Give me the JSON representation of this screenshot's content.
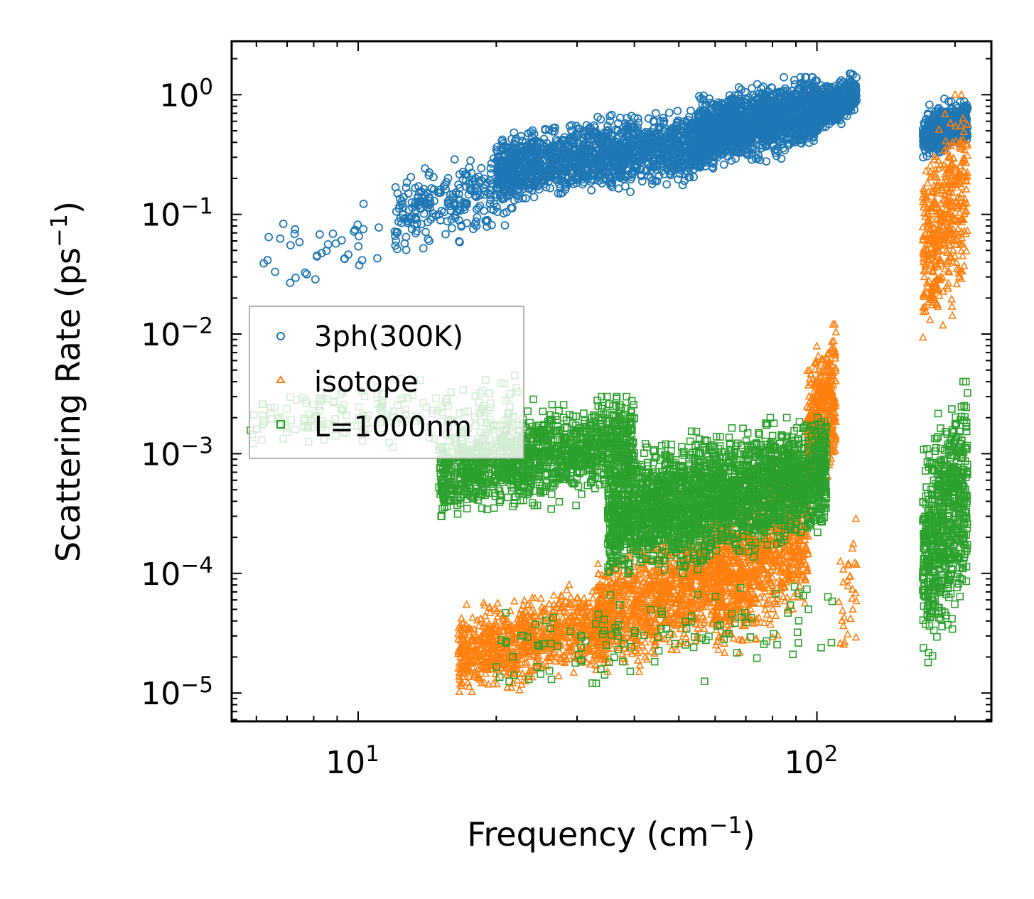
{
  "chart_data": {
    "type": "scatter",
    "xscale": "log",
    "yscale": "log",
    "xlim": [
      5.3,
      240
    ],
    "ylim": [
      5.8e-06,
      2.8
    ],
    "xlabel": "Frequency (cm",
    "xlabel_sup": "−1",
    "xlabel_tail": ")",
    "ylabel": "Scattering Rate (ps",
    "ylabel_sup": "−1",
    "ylabel_tail": ")",
    "x_ticks": [
      {
        "value": 10,
        "base": "10",
        "exp": "1"
      },
      {
        "value": 100,
        "base": "10",
        "exp": "2"
      }
    ],
    "y_ticks": [
      {
        "value": 1,
        "base": "10",
        "exp": "0"
      },
      {
        "value": 0.1,
        "base": "10",
        "exp": "−1"
      },
      {
        "value": 0.01,
        "base": "10",
        "exp": "−2"
      },
      {
        "value": 0.001,
        "base": "10",
        "exp": "−3"
      },
      {
        "value": 0.0001,
        "base": "10",
        "exp": "−4"
      },
      {
        "value": 1e-05,
        "base": "10",
        "exp": "−5"
      }
    ],
    "legend_position": "center-left",
    "series": [
      {
        "name": "3ph(300K)",
        "marker": "circle",
        "color": "#1f77b4",
        "segments": [
          {
            "x0": 5.8,
            "x1": 13,
            "y0": 0.018,
            "y1": 0.14,
            "n": 40
          },
          {
            "x0": 12,
            "x1": 22,
            "y0": 0.05,
            "y1": 0.35,
            "n": 260
          },
          {
            "x0": 20,
            "x1": 60,
            "y0": 0.13,
            "y1": 0.75,
            "n": 1500
          },
          {
            "x0": 55,
            "x1": 100,
            "y0": 0.25,
            "y1": 1.4,
            "n": 1500
          },
          {
            "x0": 100,
            "x1": 122,
            "y0": 0.5,
            "y1": 1.5,
            "n": 400
          },
          {
            "x0": 170,
            "x1": 213,
            "y0": 0.3,
            "y1": 0.95,
            "n": 500
          }
        ]
      },
      {
        "name": "isotope",
        "marker": "triangle",
        "color": "#ff7f0e",
        "segments": [
          {
            "x0": 16.5,
            "x1": 35,
            "y0": 1e-05,
            "y1": 8e-05,
            "n": 900
          },
          {
            "x0": 33,
            "x1": 62,
            "y0": 1.5e-05,
            "y1": 0.0003,
            "n": 1000
          },
          {
            "x0": 60,
            "x1": 96,
            "y0": 2e-05,
            "y1": 0.001,
            "n": 900
          },
          {
            "x0": 95,
            "x1": 110,
            "y0": 0.0003,
            "y1": 0.012,
            "n": 450
          },
          {
            "x0": 110,
            "x1": 122,
            "y0": 1e-05,
            "y1": 0.0004,
            "n": 30
          },
          {
            "x0": 170,
            "x1": 213,
            "y0": 0.008,
            "y1": 1.0,
            "n": 450
          }
        ]
      },
      {
        "name": "L=1000nm",
        "marker": "square",
        "color": "#2ca02c",
        "segments": [
          {
            "x0": 5.8,
            "x1": 23,
            "y0": 0.001,
            "y1": 0.005,
            "n": 180
          },
          {
            "x0": 15,
            "x1": 40,
            "y0": 0.0003,
            "y1": 0.003,
            "n": 1300
          },
          {
            "x0": 35,
            "x1": 105,
            "y0": 0.0001,
            "y1": 0.002,
            "n": 2600
          },
          {
            "x0": 20,
            "x1": 110,
            "y0": 1e-05,
            "y1": 0.0001,
            "n": 120
          },
          {
            "x0": 170,
            "x1": 213,
            "y0": 1.8e-05,
            "y1": 0.004,
            "n": 650
          }
        ]
      }
    ]
  }
}
